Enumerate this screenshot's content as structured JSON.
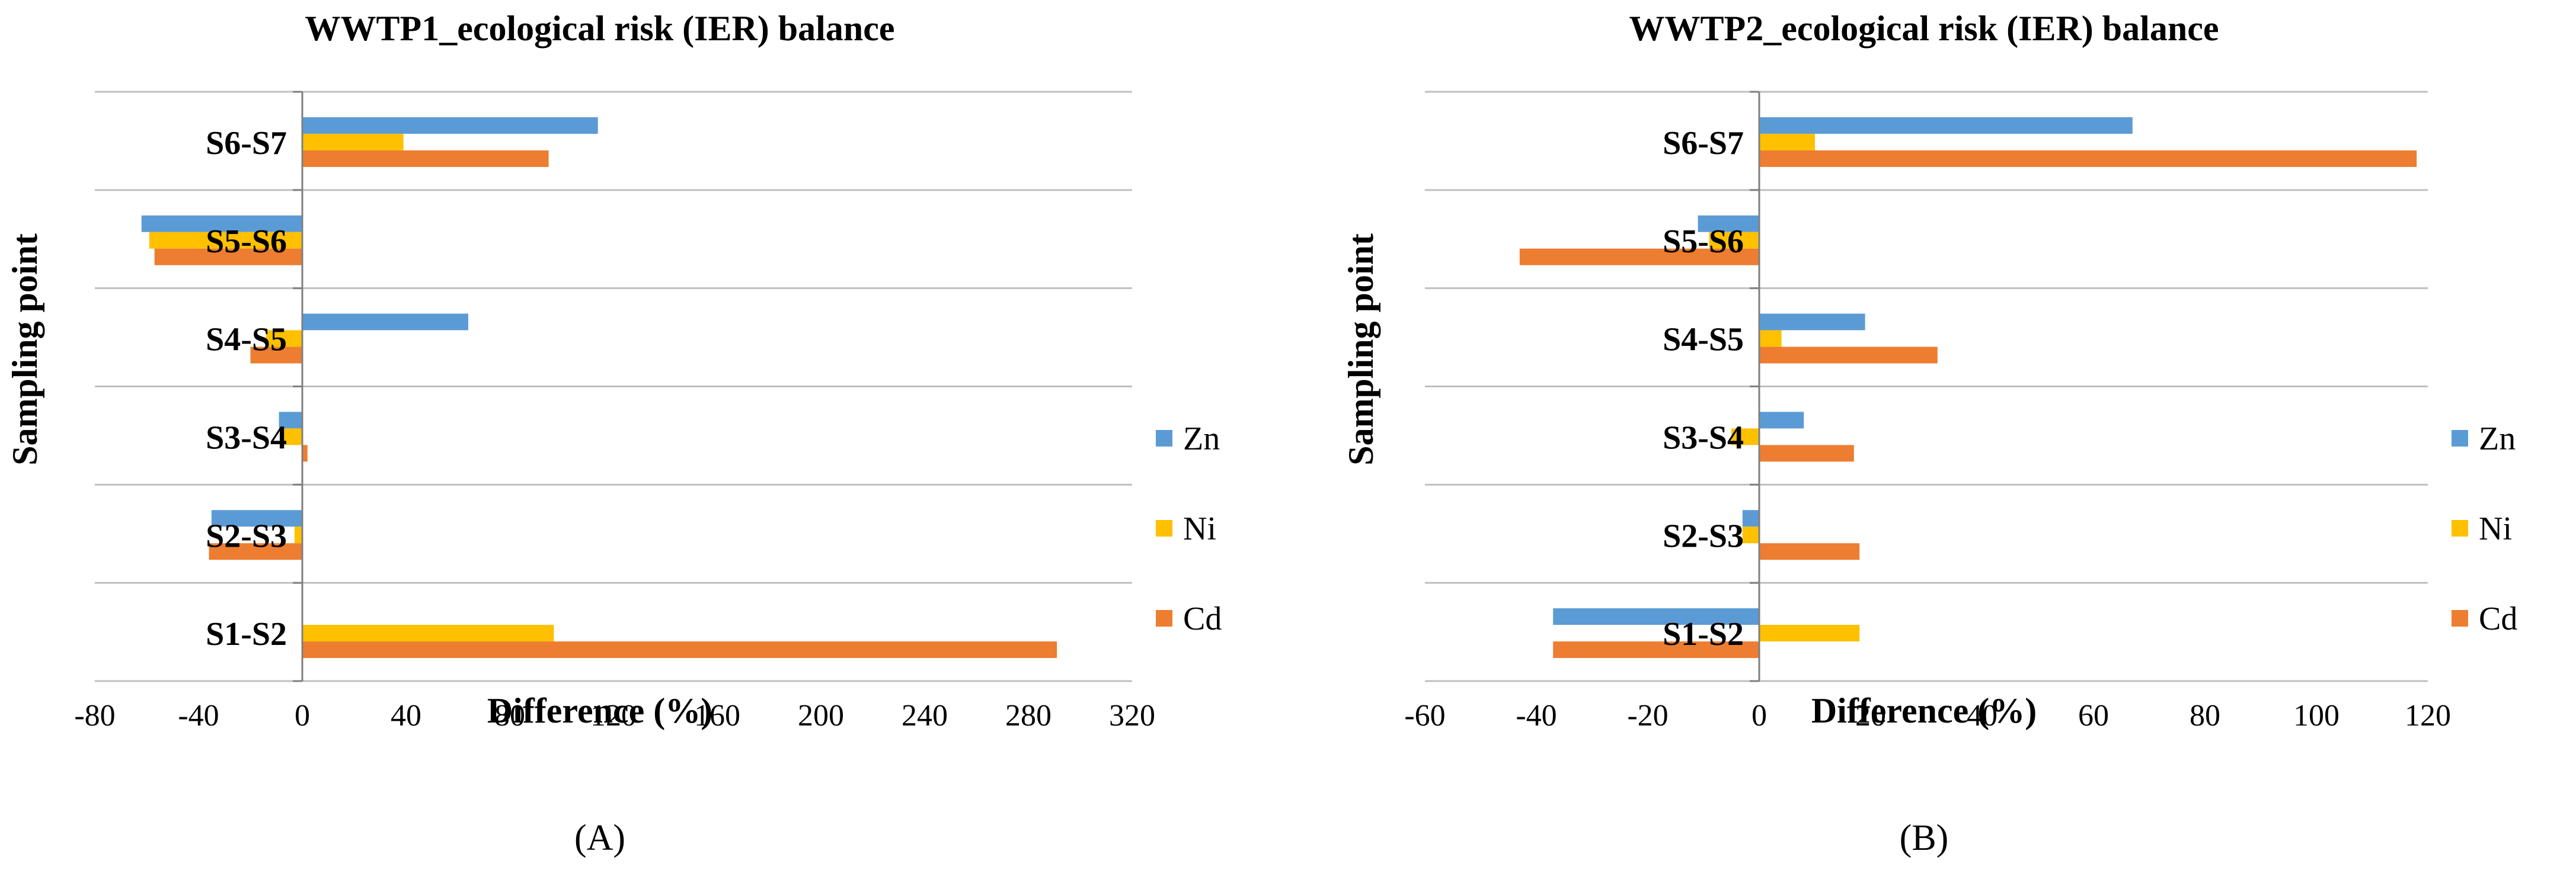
{
  "chart_data": [
    {
      "type": "bar",
      "orientation": "horizontal",
      "title": "WWTP1_ecological risk (IER) balance",
      "xlabel": "Difference (%)",
      "ylabel": "Sampling point",
      "panel_label": "(A)",
      "categories": [
        "S6-S7",
        "S5-S6",
        "S4-S5",
        "S3-S4",
        "S2-S3",
        "S1-S2"
      ],
      "xlim": [
        -80,
        320
      ],
      "xticks": [
        -80,
        -40,
        0,
        40,
        80,
        120,
        160,
        200,
        240,
        280,
        320
      ],
      "grid": "horizontal",
      "legend_position": "right",
      "series": [
        {
          "name": "Zn",
          "color": "#5B9BD5",
          "values": [
            114,
            -62,
            64,
            -9,
            -35,
            0
          ]
        },
        {
          "name": "Ni",
          "color": "#FFC000",
          "values": [
            39,
            -59,
            -14,
            -7,
            -3,
            97
          ]
        },
        {
          "name": "Cd",
          "color": "#ED7D31",
          "values": [
            95,
            -57,
            -20,
            2,
            -36,
            291
          ]
        }
      ]
    },
    {
      "type": "bar",
      "orientation": "horizontal",
      "title": "WWTP2_ecological risk (IER) balance",
      "xlabel": "Difference (%)",
      "ylabel": "Sampling point",
      "panel_label": "(B)",
      "categories": [
        "S6-S7",
        "S5-S6",
        "S4-S5",
        "S3-S4",
        "S2-S3",
        "S1-S2"
      ],
      "xlim": [
        -60,
        120
      ],
      "xticks": [
        -60,
        -40,
        -20,
        0,
        20,
        40,
        60,
        80,
        100,
        120
      ],
      "grid": "horizontal",
      "legend_position": "right",
      "series": [
        {
          "name": "Zn",
          "color": "#5B9BD5",
          "values": [
            67,
            -11,
            19,
            8,
            -3,
            -37
          ]
        },
        {
          "name": "Ni",
          "color": "#FFC000",
          "values": [
            10,
            -9,
            4,
            -5,
            -3,
            18
          ]
        },
        {
          "name": "Cd",
          "color": "#ED7D31",
          "values": [
            118,
            -43,
            32,
            17,
            18,
            -37
          ]
        }
      ]
    }
  ]
}
